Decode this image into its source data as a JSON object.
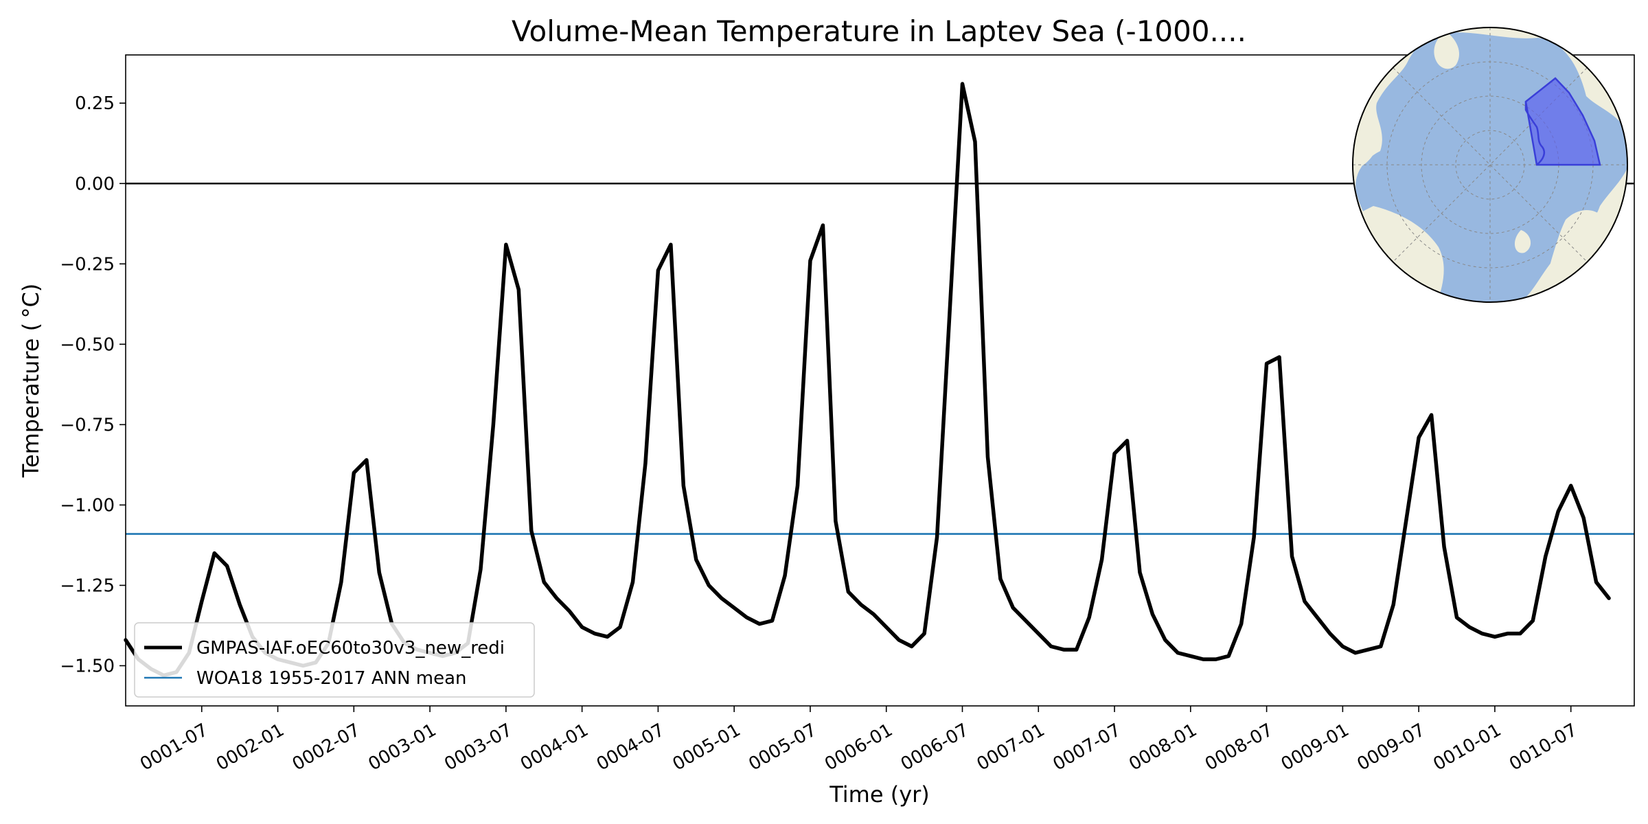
{
  "chart_data": {
    "type": "line",
    "title": "Volume-Mean Temperature in Laptev Sea (-1000....",
    "xlabel": "Time (yr)",
    "ylabel": "Temperature ( °C)",
    "x_start_month": 1.0,
    "x_range": [
      1.0,
      120.0
    ],
    "ylim": [
      -1.625,
      0.4
    ],
    "y_ticks": [
      0.25,
      0.0,
      -0.25,
      -0.5,
      -0.75,
      -1.0,
      -1.25,
      -1.5
    ],
    "y_tick_labels": [
      "0.25",
      "0.00",
      "−0.25",
      "−0.50",
      "−0.75",
      "−1.00",
      "−1.25",
      "−1.50"
    ],
    "x_ticks": [
      {
        "month": 7,
        "label": "0001-07"
      },
      {
        "month": 13,
        "label": "0002-01"
      },
      {
        "month": 19,
        "label": "0002-07"
      },
      {
        "month": 25,
        "label": "0003-01"
      },
      {
        "month": 31,
        "label": "0003-07"
      },
      {
        "month": 37,
        "label": "0004-01"
      },
      {
        "month": 43,
        "label": "0004-07"
      },
      {
        "month": 49,
        "label": "0005-01"
      },
      {
        "month": 55,
        "label": "0005-07"
      },
      {
        "month": 61,
        "label": "0006-01"
      },
      {
        "month": 67,
        "label": "0006-07"
      },
      {
        "month": 73,
        "label": "0007-01"
      },
      {
        "month": 79,
        "label": "0007-07"
      },
      {
        "month": 85,
        "label": "0008-01"
      },
      {
        "month": 91,
        "label": "0008-07"
      },
      {
        "month": 97,
        "label": "0009-01"
      },
      {
        "month": 103,
        "label": "0009-07"
      },
      {
        "month": 109,
        "label": "0010-01"
      },
      {
        "month": 115,
        "label": "0010-07"
      }
    ],
    "series": [
      {
        "name": "GMPAS-IAF.oEC60to30v3_new_redi",
        "color": "#000000",
        "values": [
          -1.42,
          -1.48,
          -1.51,
          -1.53,
          -1.52,
          -1.46,
          -1.3,
          -1.15,
          -1.19,
          -1.31,
          -1.41,
          -1.46,
          -1.48,
          -1.49,
          -1.5,
          -1.49,
          -1.43,
          -1.24,
          -0.9,
          -0.86,
          -1.21,
          -1.37,
          -1.43,
          -1.45,
          -1.46,
          -1.47,
          -1.46,
          -1.43,
          -1.2,
          -0.75,
          -0.19,
          -0.33,
          -1.08,
          -1.24,
          -1.29,
          -1.33,
          -1.38,
          -1.4,
          -1.41,
          -1.38,
          -1.24,
          -0.87,
          -0.27,
          -0.19,
          -0.94,
          -1.17,
          -1.25,
          -1.29,
          -1.32,
          -1.35,
          -1.37,
          -1.36,
          -1.22,
          -0.94,
          -0.24,
          -0.13,
          -1.05,
          -1.27,
          -1.31,
          -1.34,
          -1.38,
          -1.42,
          -1.44,
          -1.4,
          -1.1,
          -0.4,
          0.31,
          0.13,
          -0.85,
          -1.23,
          -1.32,
          -1.36,
          -1.4,
          -1.44,
          -1.45,
          -1.45,
          -1.35,
          -1.17,
          -0.84,
          -0.8,
          -1.21,
          -1.34,
          -1.42,
          -1.46,
          -1.47,
          -1.48,
          -1.48,
          -1.47,
          -1.37,
          -1.1,
          -0.56,
          -0.54,
          -1.16,
          -1.3,
          -1.35,
          -1.4,
          -1.44,
          -1.46,
          -1.45,
          -1.44,
          -1.31,
          -1.05,
          -0.79,
          -0.72,
          -1.13,
          -1.35,
          -1.38,
          -1.4,
          -1.41,
          -1.4,
          -1.4,
          -1.36,
          -1.16,
          -1.02,
          -0.94,
          -1.04,
          -1.24,
          -1.29
        ]
      },
      {
        "name": "WOA18 1955-2017 ANN mean",
        "color": "#1f77b4",
        "constant": -1.09
      }
    ],
    "reference_line": {
      "value": 0.0,
      "color": "#000000"
    },
    "legend_location": "lower-left",
    "inset": "polar map of Arctic Ocean with Laptev Sea region highlighted"
  }
}
